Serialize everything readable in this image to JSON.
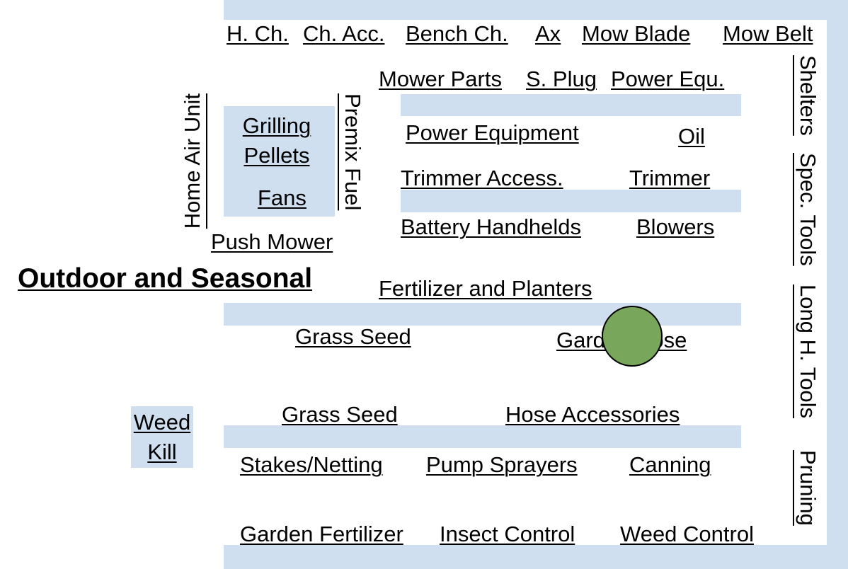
{
  "title": "Outdoor and Seasonal",
  "marker": {
    "color": "#78a65a"
  },
  "shelf_color": "#cfdff0",
  "labels": {
    "h_ch": "H. Ch.",
    "ch_acc": "Ch. Acc.",
    "bench_ch": "Bench Ch.",
    "ax": "Ax",
    "mow_blade": "Mow Blade",
    "mow_belt": "Mow Belt",
    "mower_parts": "Mower Parts",
    "s_plug": "S. Plug",
    "power_equ": "Power Equ.",
    "power_equipment": "Power Equipment",
    "oil": "Oil",
    "trimmer_access": "Trimmer Access.",
    "trimmer": "Trimmer",
    "battery_handhelds": "Battery Handhelds",
    "blowers": "Blowers",
    "home_air_unit": "Home Air Unit",
    "grilling": "Grilling",
    "pellets": "Pellets",
    "fans": "Fans",
    "premix_fuel": "Premix Fuel",
    "push_mower": "Push Mower",
    "fertilizer_planters": "Fertilizer and Planters",
    "grass_seed_1": "Grass Seed",
    "garden_hose": "Garden Hose",
    "grass_seed_2": "Grass Seed",
    "hose_accessories": "Hose Accessories",
    "weed": "Weed",
    "kill": "Kill",
    "stakes_netting": "Stakes/Netting",
    "pump_sprayers": "Pump Sprayers",
    "canning": "Canning",
    "garden_fertilizer": "Garden Fertilizer",
    "insect_control": "Insect Control",
    "weed_control": "Weed Control",
    "shelters": "Shelters",
    "spec_tools": "Spec. Tools",
    "long_h_tools": "Long H. Tools",
    "pruning": "Pruning"
  }
}
